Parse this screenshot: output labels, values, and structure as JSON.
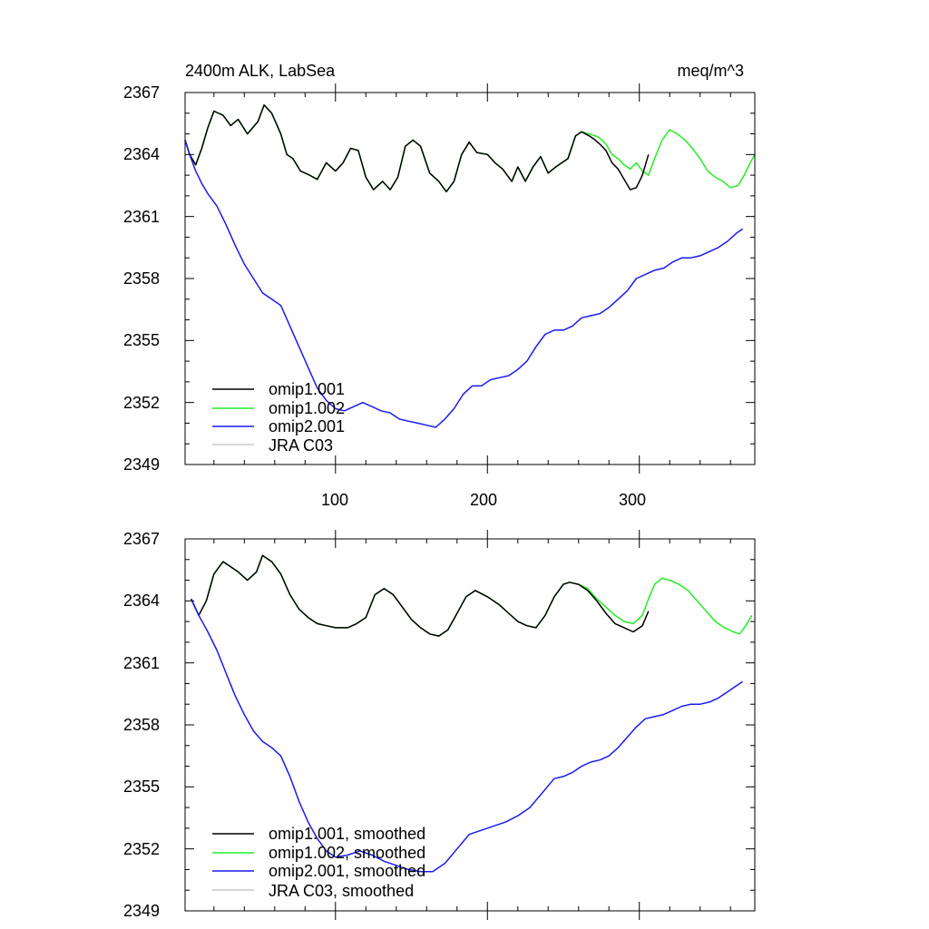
{
  "chart_data": [
    {
      "type": "line",
      "title": "2400m ALK, LabSea",
      "units": "meq/m^3",
      "xlim": [
        1,
        376
      ],
      "ylim": [
        2349,
        2367
      ],
      "x_ticks": [
        100,
        200,
        300
      ],
      "x_tick_labels": [
        "100",
        "200",
        "300"
      ],
      "y_ticks": [
        2349,
        2352,
        2355,
        2358,
        2361,
        2364,
        2367
      ],
      "y_tick_labels": [
        "2349",
        "2352",
        "2355",
        "2358",
        "2361",
        "2364",
        "2367"
      ],
      "legend": "bottom-left",
      "series": [
        {
          "name": "omip1.001",
          "color": "#000000",
          "x": [
            1,
            4,
            8,
            12,
            16,
            20,
            26,
            31,
            36,
            42,
            49,
            53,
            58,
            64,
            68,
            72,
            77,
            83,
            88,
            94,
            100,
            105,
            110,
            115,
            120,
            125,
            131,
            136,
            141,
            146,
            151,
            156,
            162,
            168,
            173,
            178,
            183,
            188,
            193,
            200,
            205,
            210,
            216,
            220,
            225,
            230,
            235,
            240,
            245,
            249,
            253,
            258,
            262,
            267,
            271,
            274,
            278,
            282,
            286,
            290,
            294,
            298,
            302,
            306
          ],
          "y": [
            2364.7,
            2364.0,
            2363.5,
            2364.3,
            2365.3,
            2366.1,
            2365.9,
            2365.4,
            2365.7,
            2365.0,
            2365.6,
            2366.4,
            2366.0,
            2365.0,
            2364.0,
            2363.8,
            2363.2,
            2363.0,
            2362.8,
            2363.6,
            2363.2,
            2363.6,
            2364.3,
            2364.2,
            2362.9,
            2362.3,
            2362.7,
            2362.3,
            2362.9,
            2364.4,
            2364.7,
            2364.4,
            2363.1,
            2362.7,
            2362.2,
            2362.7,
            2364.0,
            2364.6,
            2364.1,
            2364.0,
            2363.6,
            2363.3,
            2362.7,
            2363.4,
            2362.7,
            2363.4,
            2363.9,
            2363.1,
            2363.4,
            2363.6,
            2363.8,
            2364.9,
            2365.1,
            2364.9,
            2364.7,
            2364.5,
            2364.2,
            2363.6,
            2363.3,
            2362.8,
            2362.3,
            2362.4,
            2363.0,
            2364.0
          ]
        },
        {
          "name": "omip1.002",
          "color": "#22ee22",
          "x": [
            1,
            4,
            8,
            12,
            16,
            20,
            26,
            31,
            36,
            42,
            49,
            53,
            58,
            64,
            68,
            72,
            77,
            83,
            88,
            94,
            100,
            105,
            110,
            115,
            120,
            125,
            131,
            136,
            141,
            146,
            151,
            156,
            162,
            168,
            173,
            178,
            183,
            188,
            193,
            200,
            205,
            210,
            216,
            220,
            225,
            230,
            235,
            240,
            245,
            249,
            253,
            258,
            262,
            267,
            271,
            274,
            278,
            282,
            286,
            290,
            294,
            298,
            302,
            306,
            310,
            315,
            320,
            325,
            330,
            335,
            340,
            345,
            350,
            355,
            360,
            365,
            369,
            373,
            376
          ],
          "y": [
            2364.7,
            2364.0,
            2363.5,
            2364.3,
            2365.3,
            2366.1,
            2365.9,
            2365.4,
            2365.7,
            2365.0,
            2365.6,
            2366.4,
            2366.0,
            2365.0,
            2364.0,
            2363.8,
            2363.2,
            2363.0,
            2362.8,
            2363.6,
            2363.2,
            2363.6,
            2364.3,
            2364.2,
            2362.9,
            2362.3,
            2362.7,
            2362.3,
            2362.9,
            2364.4,
            2364.7,
            2364.4,
            2363.1,
            2362.7,
            2362.2,
            2362.7,
            2364.0,
            2364.6,
            2364.1,
            2364.0,
            2363.6,
            2363.3,
            2362.7,
            2363.4,
            2362.7,
            2363.4,
            2363.9,
            2363.1,
            2363.4,
            2363.6,
            2363.8,
            2364.9,
            2365.1,
            2365.0,
            2364.9,
            2364.8,
            2364.5,
            2364.0,
            2363.8,
            2363.5,
            2363.3,
            2363.6,
            2363.2,
            2363.0,
            2363.8,
            2364.7,
            2365.2,
            2365.0,
            2364.7,
            2364.3,
            2363.8,
            2363.2,
            2362.9,
            2362.7,
            2362.4,
            2362.5,
            2363.0,
            2363.6,
            2364.0
          ]
        },
        {
          "name": "omip2.001",
          "color": "#1a1aee",
          "x": [
            1,
            4,
            8,
            12,
            16,
            22,
            28,
            34,
            40,
            46,
            52,
            58,
            64,
            70,
            76,
            82,
            88,
            94,
            100,
            106,
            112,
            118,
            124,
            130,
            136,
            142,
            148,
            154,
            160,
            166,
            172,
            178,
            184,
            190,
            196,
            202,
            208,
            214,
            220,
            226,
            232,
            238,
            244,
            250,
            256,
            262,
            268,
            274,
            280,
            286,
            292,
            298,
            304,
            310,
            316,
            322,
            328,
            334,
            340,
            346,
            352,
            358,
            364,
            368
          ],
          "y": [
            2364.7,
            2364.0,
            2363.2,
            2362.6,
            2362.1,
            2361.5,
            2360.6,
            2359.6,
            2358.7,
            2358.0,
            2357.3,
            2357.0,
            2356.7,
            2355.7,
            2354.7,
            2353.7,
            2352.7,
            2352.1,
            2351.7,
            2351.6,
            2351.8,
            2352.0,
            2351.8,
            2351.6,
            2351.5,
            2351.2,
            2351.1,
            2351.0,
            2350.9,
            2350.8,
            2351.2,
            2351.7,
            2352.4,
            2352.8,
            2352.8,
            2353.1,
            2353.2,
            2353.3,
            2353.6,
            2354.0,
            2354.7,
            2355.3,
            2355.5,
            2355.5,
            2355.7,
            2356.1,
            2356.2,
            2356.3,
            2356.6,
            2357.0,
            2357.4,
            2358.0,
            2358.2,
            2358.4,
            2358.5,
            2358.8,
            2359.0,
            2359.0,
            2359.1,
            2359.3,
            2359.5,
            2359.8,
            2360.2,
            2360.4
          ]
        }
      ]
    },
    {
      "type": "line",
      "title": "",
      "units": "",
      "xlim": [
        1,
        376
      ],
      "ylim": [
        2349,
        2367
      ],
      "x_ticks": [
        100,
        200,
        300
      ],
      "x_tick_labels": [],
      "y_ticks": [
        2349,
        2352,
        2355,
        2358,
        2361,
        2364,
        2367
      ],
      "y_tick_labels": [
        "2349",
        "2352",
        "2355",
        "2358",
        "2361",
        "2364",
        "2367"
      ],
      "legend": "bottom-left",
      "series": [
        {
          "name": "omip1.001, smoothed",
          "color": "#000000",
          "x": [
            5,
            10,
            15,
            20,
            26,
            30,
            36,
            42,
            48,
            52,
            58,
            64,
            70,
            76,
            82,
            88,
            94,
            100,
            108,
            114,
            120,
            126,
            132,
            138,
            144,
            150,
            156,
            162,
            168,
            174,
            180,
            186,
            192,
            200,
            208,
            214,
            220,
            226,
            232,
            238,
            244,
            250,
            254,
            260,
            266,
            272,
            278,
            284,
            290,
            296,
            302,
            306
          ],
          "y": [
            2364.1,
            2363.3,
            2364.0,
            2365.3,
            2365.9,
            2365.7,
            2365.4,
            2365.0,
            2365.4,
            2366.2,
            2365.9,
            2365.3,
            2364.3,
            2363.6,
            2363.2,
            2362.9,
            2362.8,
            2362.7,
            2362.7,
            2362.9,
            2363.2,
            2364.3,
            2364.6,
            2364.3,
            2363.7,
            2363.1,
            2362.7,
            2362.4,
            2362.3,
            2362.6,
            2363.4,
            2364.2,
            2364.5,
            2364.2,
            2363.8,
            2363.4,
            2363.0,
            2362.8,
            2362.7,
            2363.3,
            2364.2,
            2364.8,
            2364.9,
            2364.8,
            2364.5,
            2364.0,
            2363.4,
            2362.9,
            2362.7,
            2362.5,
            2362.8,
            2363.5
          ]
        },
        {
          "name": "omip1.002, smoothed",
          "color": "#22ee22",
          "x": [
            5,
            10,
            15,
            20,
            26,
            30,
            36,
            42,
            48,
            52,
            58,
            64,
            70,
            76,
            82,
            88,
            94,
            100,
            108,
            114,
            120,
            126,
            132,
            138,
            144,
            150,
            156,
            162,
            168,
            174,
            180,
            186,
            192,
            200,
            208,
            214,
            220,
            226,
            232,
            238,
            244,
            250,
            254,
            260,
            266,
            272,
            278,
            284,
            290,
            296,
            302,
            306,
            310,
            315,
            320,
            326,
            332,
            338,
            344,
            350,
            356,
            362,
            366,
            370,
            374
          ],
          "y": [
            2364.1,
            2363.3,
            2364.0,
            2365.3,
            2365.9,
            2365.7,
            2365.4,
            2365.0,
            2365.4,
            2366.2,
            2365.9,
            2365.3,
            2364.3,
            2363.6,
            2363.2,
            2362.9,
            2362.8,
            2362.7,
            2362.7,
            2362.9,
            2363.2,
            2364.3,
            2364.6,
            2364.3,
            2363.7,
            2363.1,
            2362.7,
            2362.4,
            2362.3,
            2362.6,
            2363.4,
            2364.2,
            2364.5,
            2364.2,
            2363.8,
            2363.4,
            2363.0,
            2362.8,
            2362.7,
            2363.3,
            2364.2,
            2364.8,
            2364.9,
            2364.8,
            2364.6,
            2364.1,
            2363.7,
            2363.3,
            2363.0,
            2362.9,
            2363.3,
            2364.1,
            2364.8,
            2365.1,
            2365.0,
            2364.8,
            2364.5,
            2364.0,
            2363.5,
            2363.0,
            2362.7,
            2362.5,
            2362.4,
            2362.8,
            2363.3
          ]
        },
        {
          "name": "omip2.001, smoothed",
          "color": "#1a1aee",
          "x": [
            5,
            10,
            16,
            22,
            28,
            34,
            40,
            46,
            52,
            58,
            64,
            70,
            76,
            82,
            88,
            94,
            100,
            108,
            116,
            124,
            132,
            140,
            148,
            156,
            164,
            172,
            180,
            188,
            196,
            204,
            212,
            220,
            228,
            236,
            244,
            250,
            256,
            262,
            268,
            274,
            280,
            286,
            292,
            298,
            304,
            310,
            316,
            322,
            328,
            334,
            340,
            346,
            352,
            358,
            364,
            368
          ],
          "y": [
            2364.1,
            2363.3,
            2362.5,
            2361.6,
            2360.5,
            2359.4,
            2358.5,
            2357.7,
            2357.2,
            2356.9,
            2356.5,
            2355.5,
            2354.3,
            2353.3,
            2352.5,
            2351.9,
            2351.6,
            2351.7,
            2351.9,
            2351.7,
            2351.4,
            2351.2,
            2351.0,
            2350.9,
            2350.9,
            2351.3,
            2352.0,
            2352.7,
            2352.9,
            2353.1,
            2353.3,
            2353.6,
            2354.0,
            2354.7,
            2355.4,
            2355.5,
            2355.7,
            2356.0,
            2356.2,
            2356.3,
            2356.5,
            2356.9,
            2357.4,
            2357.9,
            2358.3,
            2358.4,
            2358.5,
            2358.7,
            2358.9,
            2359.0,
            2359.0,
            2359.1,
            2359.3,
            2359.6,
            2359.9,
            2360.1
          ]
        }
      ]
    }
  ],
  "legend_extra": [
    "JRA C03",
    "JRA C03, smoothed"
  ],
  "legend_extra_color": "#c8c8c8"
}
